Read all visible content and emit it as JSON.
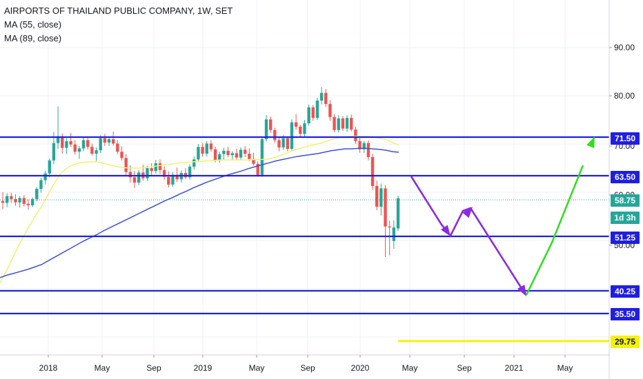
{
  "legend": {
    "title": "AIRPORTS OF THAILAND PUBLIC COMPANY, 1W, SET",
    "ma1": "MA (55, close)",
    "ma2": "MA (89, close)"
  },
  "colors": {
    "up": "#26a69a",
    "down": "#ef5350",
    "ma55": "#f4f16b",
    "ma89": "#3b4fd8",
    "level": "#1f1fe0",
    "last_price": "#26a69a",
    "arrow_purple": "#8a2be2",
    "arrow_green": "#33dd22",
    "yellow_level": "#f2f20a"
  },
  "chart_data": {
    "type": "candlestick",
    "title": "AIRPORTS OF THAILAND PUBLIC COMPANY, 1W, SET",
    "interval": "1W",
    "exchange": "SET",
    "x_ticks": [
      "2018",
      "May",
      "Sep",
      "2019",
      "May",
      "Sep",
      "2020",
      "May",
      "Sep",
      "2021",
      "May"
    ],
    "x_tick_dates": [
      "2018-01-01",
      "2018-05-01",
      "2018-09-01",
      "2019-01-01",
      "2019-05-01",
      "2019-09-01",
      "2020-01-01",
      "2020-05-01",
      "2020-09-01",
      "2021-01-01",
      "2021-05-01"
    ],
    "y_ticks": [
      90.0,
      80.0,
      70.0,
      60.0,
      50.0
    ],
    "ylim": [
      25.6,
      100.5
    ],
    "grid": true,
    "price_levels": [
      71.5,
      63.5,
      51.25,
      40.25,
      35.5
    ],
    "yellow_level": 29.75,
    "last_price": 58.75,
    "countdown": "1d 3h",
    "candles_ohlc": [
      [
        58.2,
        60.0,
        56.5,
        57.8
      ],
      [
        57.8,
        59.8,
        56.9,
        59.2
      ],
      [
        59.2,
        59.9,
        57.8,
        58.6
      ],
      [
        58.6,
        59.6,
        57.2,
        57.9
      ],
      [
        57.9,
        59.2,
        56.8,
        58.8
      ],
      [
        58.8,
        59.4,
        57.0,
        57.6
      ],
      [
        57.6,
        58.5,
        56.4,
        57.3
      ],
      [
        57.3,
        58.9,
        56.9,
        58.6
      ],
      [
        58.6,
        61.0,
        58.1,
        60.7
      ],
      [
        60.7,
        63.0,
        59.9,
        62.5
      ],
      [
        62.5,
        64.5,
        61.6,
        63.9
      ],
      [
        63.9,
        67.0,
        63.1,
        66.6
      ],
      [
        66.6,
        72.5,
        65.8,
        70.2
      ],
      [
        70.2,
        77.8,
        69.0,
        71.6
      ],
      [
        71.6,
        72.2,
        68.0,
        69.2
      ],
      [
        69.2,
        71.2,
        67.9,
        70.6
      ],
      [
        70.6,
        72.3,
        69.4,
        69.9
      ],
      [
        69.9,
        70.8,
        67.8,
        68.4
      ],
      [
        68.4,
        69.6,
        66.9,
        69.1
      ],
      [
        69.1,
        71.5,
        68.5,
        70.8
      ],
      [
        70.8,
        71.4,
        68.9,
        69.4
      ],
      [
        69.4,
        70.1,
        67.6,
        68.0
      ],
      [
        68.0,
        69.3,
        66.5,
        68.7
      ],
      [
        68.7,
        71.8,
        68.1,
        71.2
      ],
      [
        71.2,
        72.1,
        69.6,
        70.3
      ],
      [
        70.3,
        71.5,
        69.6,
        71.0
      ],
      [
        71.0,
        72.6,
        69.7,
        70.1
      ],
      [
        70.1,
        70.8,
        67.9,
        68.4
      ],
      [
        68.4,
        69.5,
        66.6,
        67.1
      ],
      [
        67.1,
        67.9,
        63.6,
        64.2
      ],
      [
        64.2,
        65.6,
        62.0,
        63.1
      ],
      [
        63.1,
        64.4,
        60.9,
        62.0
      ],
      [
        62.0,
        64.6,
        61.5,
        64.1
      ],
      [
        64.1,
        65.7,
        62.4,
        62.9
      ],
      [
        62.9,
        65.5,
        62.3,
        65.0
      ],
      [
        65.0,
        66.0,
        63.5,
        64.4
      ],
      [
        64.4,
        66.7,
        63.9,
        66.0
      ],
      [
        66.0,
        66.8,
        63.8,
        64.6
      ],
      [
        64.6,
        65.4,
        62.6,
        63.2
      ],
      [
        63.2,
        64.3,
        61.0,
        61.6
      ],
      [
        61.6,
        64.2,
        61.1,
        63.6
      ],
      [
        63.6,
        65.1,
        62.1,
        62.7
      ],
      [
        62.7,
        64.5,
        62.0,
        64.0
      ],
      [
        64.0,
        65.0,
        62.7,
        63.1
      ],
      [
        63.1,
        65.8,
        62.6,
        65.3
      ],
      [
        65.3,
        67.4,
        64.7,
        66.8
      ],
      [
        66.8,
        70.0,
        66.2,
        69.4
      ],
      [
        69.4,
        70.2,
        67.4,
        68.0
      ],
      [
        68.0,
        70.6,
        67.4,
        70.1
      ],
      [
        70.1,
        70.8,
        68.4,
        68.9
      ],
      [
        68.9,
        69.5,
        66.2,
        66.7
      ],
      [
        66.7,
        68.4,
        66.1,
        67.9
      ],
      [
        67.9,
        69.2,
        66.7,
        68.6
      ],
      [
        68.6,
        69.4,
        67.3,
        67.7
      ],
      [
        67.7,
        68.5,
        66.6,
        68.1
      ],
      [
        68.1,
        69.0,
        66.7,
        67.2
      ],
      [
        67.2,
        69.3,
        66.8,
        68.8
      ],
      [
        68.8,
        69.6,
        67.3,
        68.0
      ],
      [
        68.0,
        69.1,
        66.4,
        66.9
      ],
      [
        66.9,
        68.2,
        65.5,
        65.9
      ],
      [
        65.9,
        66.4,
        63.2,
        63.6
      ],
      [
        63.6,
        71.6,
        63.2,
        71.0
      ],
      [
        71.0,
        76.0,
        70.5,
        75.1
      ],
      [
        75.1,
        75.7,
        72.3,
        72.9
      ],
      [
        72.9,
        73.4,
        70.2,
        70.8
      ],
      [
        70.8,
        71.3,
        68.5,
        69.3
      ],
      [
        69.3,
        71.8,
        68.8,
        71.2
      ],
      [
        71.2,
        71.6,
        68.5,
        69.0
      ],
      [
        69.0,
        75.1,
        68.6,
        74.5
      ],
      [
        74.5,
        76.2,
        73.0,
        73.6
      ],
      [
        73.6,
        74.0,
        71.4,
        72.1
      ],
      [
        72.1,
        75.0,
        71.6,
        74.3
      ],
      [
        74.3,
        78.2,
        73.8,
        77.6
      ],
      [
        77.6,
        78.1,
        74.8,
        75.4
      ],
      [
        75.4,
        79.6,
        75.0,
        79.0
      ],
      [
        79.0,
        81.8,
        78.2,
        80.6
      ],
      [
        80.6,
        81.4,
        77.7,
        78.3
      ],
      [
        78.3,
        79.1,
        74.8,
        75.6
      ],
      [
        75.6,
        76.2,
        72.4,
        72.9
      ],
      [
        72.9,
        76.0,
        72.4,
        75.3
      ],
      [
        75.3,
        75.8,
        72.7,
        73.2
      ],
      [
        73.2,
        76.0,
        72.5,
        75.4
      ],
      [
        75.4,
        76.1,
        72.6,
        73.0
      ],
      [
        73.0,
        73.6,
        70.0,
        70.6
      ],
      [
        70.6,
        71.4,
        68.2,
        68.9
      ],
      [
        68.9,
        70.6,
        68.1,
        70.2
      ],
      [
        70.2,
        70.7,
        66.6,
        67.3
      ],
      [
        67.3,
        68.0,
        60.5,
        61.3
      ],
      [
        61.3,
        62.4,
        56.3,
        57.0
      ],
      [
        57.0,
        61.8,
        55.2,
        60.8
      ],
      [
        60.8,
        61.5,
        46.6,
        52.9
      ],
      [
        52.9,
        54.1,
        46.9,
        52.7
      ],
      [
        49.9,
        54.2,
        48.3,
        52.7
      ],
      [
        52.5,
        59.3,
        52.0,
        58.75
      ]
    ],
    "ma55": [
      [
        0,
        41.2
      ],
      [
        10,
        43.9
      ],
      [
        20,
        46.9
      ],
      [
        30,
        49.8
      ],
      [
        40,
        52.4
      ],
      [
        50,
        54.8
      ],
      [
        60,
        57.0
      ],
      [
        70,
        59.6
      ],
      [
        80,
        62.2
      ],
      [
        90,
        64.2
      ],
      [
        100,
        65.3
      ],
      [
        110,
        65.9
      ],
      [
        120,
        66.2
      ],
      [
        130,
        66.3
      ],
      [
        140,
        66.3
      ],
      [
        150,
        66.0
      ],
      [
        160,
        65.6
      ],
      [
        170,
        65.3
      ],
      [
        180,
        65.1
      ],
      [
        190,
        65.0
      ],
      [
        200,
        65.0
      ],
      [
        210,
        65.1
      ],
      [
        220,
        65.3
      ],
      [
        230,
        65.5
      ],
      [
        240,
        65.7
      ],
      [
        250,
        65.9
      ],
      [
        260,
        66.1
      ],
      [
        270,
        66.2
      ],
      [
        280,
        66.3
      ],
      [
        290,
        66.4
      ],
      [
        300,
        66.5
      ],
      [
        310,
        66.6
      ],
      [
        320,
        66.7
      ],
      [
        330,
        66.7
      ],
      [
        340,
        66.7
      ],
      [
        350,
        66.7
      ],
      [
        360,
        66.7
      ],
      [
        370,
        66.8
      ],
      [
        380,
        66.8
      ],
      [
        390,
        66.9
      ],
      [
        400,
        67.3
      ],
      [
        410,
        67.8
      ],
      [
        420,
        68.4
      ],
      [
        430,
        68.9
      ],
      [
        440,
        69.3
      ],
      [
        450,
        69.7
      ],
      [
        460,
        70.0
      ],
      [
        470,
        70.4
      ],
      [
        480,
        70.9
      ],
      [
        490,
        71.3
      ],
      [
        500,
        71.5
      ],
      [
        510,
        71.6
      ],
      [
        520,
        71.6
      ],
      [
        530,
        71.6
      ],
      [
        540,
        71.5
      ],
      [
        550,
        71.2
      ],
      [
        560,
        70.9
      ],
      [
        570,
        70.2
      ],
      [
        578,
        69.8
      ]
    ],
    "ma89": [
      [
        0,
        42.3
      ],
      [
        10,
        42.8
      ],
      [
        20,
        43.2
      ],
      [
        30,
        43.6
      ],
      [
        40,
        44.0
      ],
      [
        50,
        44.5
      ],
      [
        60,
        45.0
      ],
      [
        70,
        45.8
      ],
      [
        80,
        46.6
      ],
      [
        90,
        47.4
      ],
      [
        100,
        48.2
      ],
      [
        110,
        49.0
      ],
      [
        120,
        49.8
      ],
      [
        130,
        50.5
      ],
      [
        140,
        51.2
      ],
      [
        150,
        52.0
      ],
      [
        160,
        52.7
      ],
      [
        170,
        53.4
      ],
      [
        180,
        54.1
      ],
      [
        190,
        54.8
      ],
      [
        200,
        55.5
      ],
      [
        210,
        56.2
      ],
      [
        220,
        56.9
      ],
      [
        230,
        57.6
      ],
      [
        240,
        58.3
      ],
      [
        250,
        58.9
      ],
      [
        260,
        59.6
      ],
      [
        270,
        60.2
      ],
      [
        280,
        60.9
      ],
      [
        290,
        61.5
      ],
      [
        300,
        62.1
      ],
      [
        310,
        62.6
      ],
      [
        320,
        63.1
      ],
      [
        330,
        63.6
      ],
      [
        340,
        64.0
      ],
      [
        350,
        64.4
      ],
      [
        360,
        64.9
      ],
      [
        370,
        65.3
      ],
      [
        380,
        65.7
      ],
      [
        390,
        66.1
      ],
      [
        400,
        66.5
      ],
      [
        410,
        66.8
      ],
      [
        420,
        67.1
      ],
      [
        430,
        67.4
      ],
      [
        440,
        67.6
      ],
      [
        450,
        67.8
      ],
      [
        460,
        68.0
      ],
      [
        470,
        68.3
      ],
      [
        480,
        68.6
      ],
      [
        490,
        68.8
      ],
      [
        500,
        69.0
      ],
      [
        510,
        69.0
      ],
      [
        520,
        69.1
      ],
      [
        530,
        69.1
      ],
      [
        540,
        69.0
      ],
      [
        550,
        68.9
      ],
      [
        560,
        68.7
      ],
      [
        570,
        68.4
      ],
      [
        578,
        68.3
      ]
    ],
    "projection_purple": [
      [
        596,
        63.5
      ],
      [
        640,
        53.0
      ],
      [
        653,
        51.25
      ],
      [
        671,
        56.3
      ],
      [
        682,
        56.8
      ],
      [
        757,
        41.5
      ],
      [
        763,
        40.0
      ]
    ],
    "projection_green": [
      [
        763,
        40.0
      ],
      [
        800,
        51.0
      ],
      [
        862,
        71.2
      ]
    ]
  },
  "price_labels": {
    "l1": "71.50",
    "l2": "63.50",
    "l3": "58.75",
    "l4": "1d 3h",
    "l5": "51.25",
    "l6": "40.25",
    "l7": "35.50",
    "l8": "29.75"
  }
}
